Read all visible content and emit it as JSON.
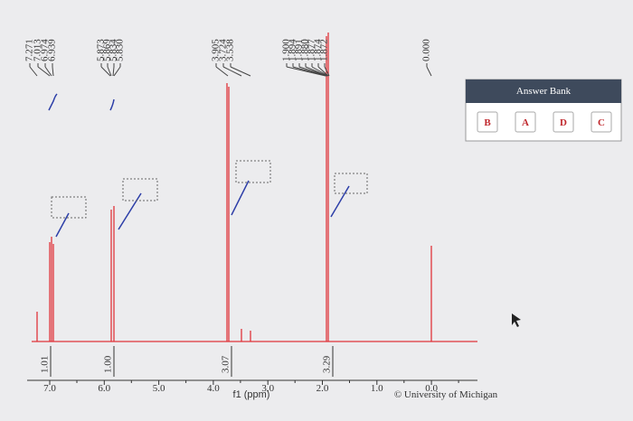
{
  "peak_labels": [
    [
      "7.271",
      "7.013",
      "6.974",
      "6.939"
    ],
    [
      "5.873",
      "5.869",
      "5.834",
      "5.830"
    ],
    [
      "3.905",
      "3.724",
      "3.538"
    ],
    [
      "1.900",
      "1.894",
      "1.891",
      "1.880",
      "1.877",
      "1.874",
      "1.872"
    ],
    [
      "0.000"
    ]
  ],
  "integrals": [
    "1.01",
    "1.00",
    "3.07",
    "3.29"
  ],
  "x_axis": {
    "ticks": [
      "7.0",
      "6.0",
      "5.0",
      "4.0",
      "3.0",
      "2.0",
      "1.0",
      "0.0"
    ],
    "label": "f1 (ppm)"
  },
  "credit": "© University of Michigan",
  "answer_bank": {
    "title": "Answer Bank",
    "options": [
      "B",
      "A",
      "D",
      "C"
    ]
  }
}
